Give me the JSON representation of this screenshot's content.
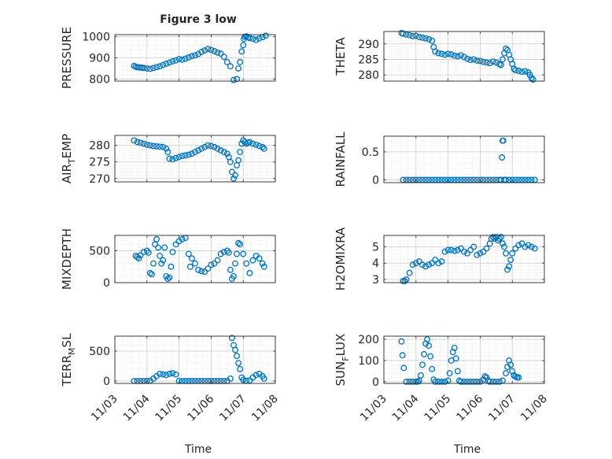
{
  "figure": {
    "title": "Figure 3 low",
    "x_tick_labels": [
      "11/03",
      "11/04",
      "11/05",
      "11/06",
      "11/07",
      "11/08"
    ],
    "xlabel": "Time"
  },
  "chart_data": [
    {
      "type": "scatter",
      "title": "Figure 3 low",
      "ylabel": "PRESSURE",
      "ylim": [
        790,
        1010
      ],
      "yticks": [
        800,
        900,
        1000
      ],
      "xlim": [
        "11/03",
        "11/08"
      ],
      "grid": true,
      "color": "#0072BD",
      "x_days": [
        0.6,
        0.65,
        0.7,
        0.75,
        0.8,
        0.85,
        0.9,
        1.0,
        1.1,
        1.2,
        1.3,
        1.4,
        1.5,
        1.6,
        1.7,
        1.8,
        1.9,
        2.0,
        2.1,
        2.2,
        2.3,
        2.4,
        2.5,
        2.6,
        2.7,
        2.8,
        2.9,
        3.0,
        3.1,
        3.2,
        3.3,
        3.4,
        3.5,
        3.6,
        3.7,
        3.8,
        3.85,
        3.9,
        3.95,
        4.0,
        4.02,
        4.05,
        4.1,
        4.15,
        4.2,
        4.3,
        4.4,
        4.5,
        4.6,
        4.7
      ],
      "y": [
        862,
        858,
        856,
        855,
        854,
        853,
        852,
        850,
        848,
        852,
        856,
        860,
        866,
        872,
        878,
        884,
        888,
        894,
        892,
        896,
        902,
        908,
        912,
        918,
        928,
        935,
        942,
        938,
        932,
        925,
        920,
        905,
        880,
        860,
        795,
        800,
        850,
        880,
        930,
        960,
        990,
        1000,
        1002,
        998,
        994,
        990,
        985,
        992,
        998,
        1005
      ]
    },
    {
      "type": "scatter",
      "ylabel": "THETA",
      "ylim": [
        278,
        294
      ],
      "yticks": [
        280,
        285,
        290
      ],
      "xlim": [
        "11/03",
        "11/08"
      ],
      "grid": true,
      "color": "#0072BD",
      "x_days": [
        0.55,
        0.6,
        0.7,
        0.8,
        0.9,
        1.0,
        1.1,
        1.2,
        1.3,
        1.4,
        1.5,
        1.55,
        1.6,
        1.7,
        1.8,
        1.9,
        2.0,
        2.1,
        2.2,
        2.3,
        2.4,
        2.5,
        2.6,
        2.7,
        2.8,
        2.9,
        3.0,
        3.1,
        3.2,
        3.3,
        3.4,
        3.5,
        3.6,
        3.65,
        3.7,
        3.75,
        3.8,
        3.85,
        3.9,
        3.95,
        4.0,
        4.05,
        4.1,
        4.2,
        4.3,
        4.4,
        4.5,
        4.55,
        4.6,
        4.65
      ],
      "y": [
        293.5,
        293.3,
        293.0,
        292.8,
        292.5,
        292.6,
        292.2,
        292.0,
        291.8,
        291.5,
        291.0,
        289.0,
        287.5,
        287.0,
        286.8,
        286.5,
        286.8,
        286.6,
        286.2,
        286.0,
        286.3,
        285.8,
        285.2,
        284.8,
        285.0,
        284.6,
        284.5,
        284.2,
        284.0,
        283.8,
        284.3,
        284.0,
        283.5,
        283.2,
        285.0,
        287.0,
        288.5,
        288.0,
        286.5,
        285.0,
        283.5,
        282.0,
        281.5,
        281.3,
        281.0,
        281.2,
        280.8,
        280.0,
        279.0,
        278.5
      ]
    },
    {
      "type": "scatter",
      "ylabel": "AIR_TEMP",
      "ylim": [
        269,
        283
      ],
      "yticks": [
        270,
        275,
        280
      ],
      "xlim": [
        "11/03",
        "11/08"
      ],
      "grid": true,
      "color": "#0072BD",
      "x_days": [
        0.6,
        0.7,
        0.8,
        0.9,
        1.0,
        1.1,
        1.2,
        1.3,
        1.4,
        1.5,
        1.6,
        1.65,
        1.7,
        1.8,
        1.9,
        2.0,
        2.1,
        2.2,
        2.3,
        2.4,
        2.5,
        2.6,
        2.7,
        2.8,
        2.9,
        3.0,
        3.1,
        3.2,
        3.3,
        3.4,
        3.5,
        3.55,
        3.6,
        3.65,
        3.7,
        3.75,
        3.8,
        3.85,
        3.9,
        3.95,
        4.0,
        4.05,
        4.1,
        4.15,
        4.2,
        4.3,
        4.4,
        4.5,
        4.6,
        4.65
      ],
      "y": [
        281.5,
        281.0,
        280.8,
        280.5,
        280.2,
        280.0,
        279.8,
        279.7,
        279.6,
        279.5,
        279.0,
        278.0,
        276.0,
        275.8,
        276.2,
        276.5,
        276.8,
        277.0,
        277.2,
        277.5,
        278.0,
        278.5,
        279.0,
        279.5,
        280.0,
        279.8,
        279.5,
        279.0,
        278.5,
        278.0,
        277.5,
        276.5,
        275.0,
        272.0,
        270.0,
        271.0,
        274.0,
        275.5,
        278.0,
        280.5,
        281.5,
        281.0,
        280.5,
        280.8,
        281.0,
        280.5,
        280.2,
        279.8,
        279.5,
        279.0
      ]
    },
    {
      "type": "scatter",
      "ylabel": "RAINFALL",
      "ylim": [
        -0.05,
        0.78
      ],
      "yticks": [
        0,
        0.5
      ],
      "xlim": [
        "11/03",
        "11/08"
      ],
      "grid": true,
      "color": "#0072BD",
      "x_days": [
        0.6,
        0.7,
        0.8,
        0.9,
        1.0,
        1.1,
        1.2,
        1.3,
        1.4,
        1.5,
        1.6,
        1.7,
        1.8,
        1.9,
        2.0,
        2.1,
        2.2,
        2.3,
        2.4,
        2.5,
        2.6,
        2.7,
        2.8,
        2.9,
        3.0,
        3.1,
        3.2,
        3.3,
        3.4,
        3.5,
        3.6,
        3.65,
        3.68,
        3.7,
        3.72,
        3.75,
        3.8,
        3.9,
        4.0,
        4.1,
        4.2,
        4.3,
        4.4,
        4.5,
        4.6,
        4.7
      ],
      "y": [
        0,
        0,
        0,
        0,
        0,
        0,
        0,
        0,
        0,
        0,
        0,
        0,
        0,
        0,
        0,
        0,
        0,
        0,
        0,
        0,
        0,
        0,
        0,
        0,
        0,
        0,
        0,
        0,
        0,
        0,
        0,
        0,
        0.4,
        0.7,
        0.7,
        0,
        0,
        0,
        0,
        0,
        0,
        0,
        0,
        0,
        0,
        0
      ]
    },
    {
      "type": "scatter",
      "ylabel": "MIXDEPTH",
      "ylim": [
        0,
        740
      ],
      "yticks": [
        0,
        500
      ],
      "xlim": [
        "11/03",
        "11/08"
      ],
      "grid": true,
      "color": "#0072BD",
      "x_days": [
        0.65,
        0.7,
        0.75,
        0.8,
        0.9,
        1.0,
        1.05,
        1.1,
        1.15,
        1.2,
        1.25,
        1.3,
        1.35,
        1.4,
        1.45,
        1.5,
        1.55,
        1.6,
        1.65,
        1.7,
        1.75,
        1.8,
        1.9,
        2.0,
        2.1,
        2.2,
        2.3,
        2.35,
        2.4,
        2.5,
        2.6,
        2.7,
        2.8,
        2.9,
        3.0,
        3.1,
        3.2,
        3.3,
        3.4,
        3.5,
        3.55,
        3.6,
        3.65,
        3.7,
        3.75,
        3.8,
        3.85,
        3.9,
        4.0,
        4.1,
        4.2,
        4.3,
        4.4,
        4.5,
        4.6,
        4.65
      ],
      "y": [
        420,
        400,
        380,
        430,
        480,
        500,
        470,
        150,
        130,
        300,
        600,
        680,
        550,
        420,
        300,
        350,
        550,
        100,
        60,
        80,
        250,
        480,
        600,
        650,
        680,
        700,
        450,
        250,
        380,
        300,
        200,
        180,
        170,
        220,
        280,
        300,
        350,
        450,
        480,
        500,
        470,
        200,
        60,
        100,
        300,
        450,
        620,
        600,
        450,
        300,
        150,
        350,
        420,
        380,
        300,
        250
      ]
    },
    {
      "type": "scatter",
      "ylabel": "H2OMIXRA",
      "ylim": [
        2.8,
        5.7
      ],
      "yticks": [
        3,
        4,
        5
      ],
      "xlim": [
        "11/03",
        "11/08"
      ],
      "grid": true,
      "color": "#0072BD",
      "x_days": [
        0.6,
        0.65,
        0.7,
        0.8,
        0.9,
        1.0,
        1.1,
        1.2,
        1.3,
        1.4,
        1.5,
        1.6,
        1.7,
        1.8,
        1.9,
        2.0,
        2.1,
        2.2,
        2.3,
        2.4,
        2.5,
        2.6,
        2.7,
        2.8,
        2.9,
        3.0,
        3.1,
        3.2,
        3.3,
        3.35,
        3.4,
        3.45,
        3.5,
        3.55,
        3.6,
        3.65,
        3.7,
        3.75,
        3.8,
        3.85,
        3.9,
        3.95,
        4.0,
        4.1,
        4.2,
        4.3,
        4.4,
        4.5,
        4.6,
        4.7
      ],
      "y": [
        2.9,
        2.9,
        3.0,
        3.4,
        3.9,
        4.0,
        4.1,
        3.9,
        3.8,
        3.9,
        4.0,
        4.2,
        4.0,
        4.1,
        4.7,
        4.8,
        4.8,
        4.75,
        4.8,
        4.9,
        4.7,
        4.6,
        4.8,
        5.0,
        4.5,
        4.6,
        4.7,
        4.9,
        5.2,
        5.5,
        5.6,
        5.5,
        5.6,
        5.4,
        5.5,
        5.6,
        5.2,
        5.0,
        4.6,
        3.6,
        3.8,
        4.2,
        4.6,
        4.9,
        5.1,
        5.2,
        5.0,
        5.1,
        5.0,
        4.9
      ]
    },
    {
      "type": "scatter",
      "ylabel": "TERR_MSL",
      "ylim": [
        -40,
        750
      ],
      "yticks": [
        0,
        500
      ],
      "xlim": [
        "11/03",
        "11/08"
      ],
      "grid": true,
      "color": "#0072BD",
      "x_days": [
        0.6,
        0.7,
        0.8,
        0.9,
        1.0,
        1.1,
        1.2,
        1.3,
        1.4,
        1.5,
        1.6,
        1.7,
        1.8,
        1.9,
        2.0,
        2.1,
        2.2,
        2.3,
        2.4,
        2.5,
        2.6,
        2.7,
        2.8,
        2.9,
        3.0,
        3.1,
        3.2,
        3.3,
        3.4,
        3.5,
        3.6,
        3.65,
        3.7,
        3.75,
        3.8,
        3.85,
        3.9,
        3.95,
        4.0,
        4.1,
        4.2,
        4.3,
        4.4,
        4.5,
        4.6,
        4.65
      ],
      "y": [
        0,
        0,
        0,
        0,
        0,
        5,
        40,
        80,
        120,
        110,
        100,
        120,
        130,
        110,
        0,
        0,
        0,
        0,
        0,
        0,
        0,
        0,
        0,
        0,
        0,
        0,
        0,
        0,
        0,
        0,
        40,
        720,
        600,
        520,
        420,
        300,
        200,
        60,
        20,
        5,
        10,
        60,
        100,
        120,
        80,
        40
      ]
    },
    {
      "type": "scatter",
      "ylabel": "SUN_FLUX",
      "ylim": [
        -8,
        215
      ],
      "yticks": [
        0,
        100,
        200
      ],
      "xlim": [
        "11/03",
        "11/08"
      ],
      "grid": true,
      "color": "#0072BD",
      "x_days": [
        0.55,
        0.58,
        0.62,
        0.7,
        0.8,
        0.9,
        1.0,
        1.05,
        1.1,
        1.15,
        1.2,
        1.25,
        1.3,
        1.35,
        1.4,
        1.45,
        1.5,
        1.55,
        1.6,
        1.7,
        1.8,
        1.9,
        2.0,
        2.05,
        2.1,
        2.15,
        2.2,
        2.25,
        2.3,
        2.35,
        2.4,
        2.5,
        2.6,
        2.7,
        2.8,
        2.9,
        3.0,
        3.1,
        3.15,
        3.2,
        3.25,
        3.3,
        3.4,
        3.5,
        3.6,
        3.7,
        3.8,
        3.85,
        3.9,
        3.95,
        4.0,
        4.05,
        4.1,
        4.15,
        4.2
      ],
      "y": [
        190,
        125,
        65,
        0,
        0,
        0,
        0,
        0,
        5,
        30,
        80,
        130,
        180,
        200,
        170,
        120,
        60,
        10,
        0,
        0,
        0,
        0,
        5,
        40,
        100,
        140,
        160,
        110,
        50,
        5,
        0,
        0,
        0,
        0,
        0,
        0,
        0,
        10,
        25,
        20,
        5,
        0,
        0,
        0,
        0,
        5,
        40,
        70,
        100,
        80,
        50,
        30,
        25,
        20,
        20
      ]
    }
  ]
}
